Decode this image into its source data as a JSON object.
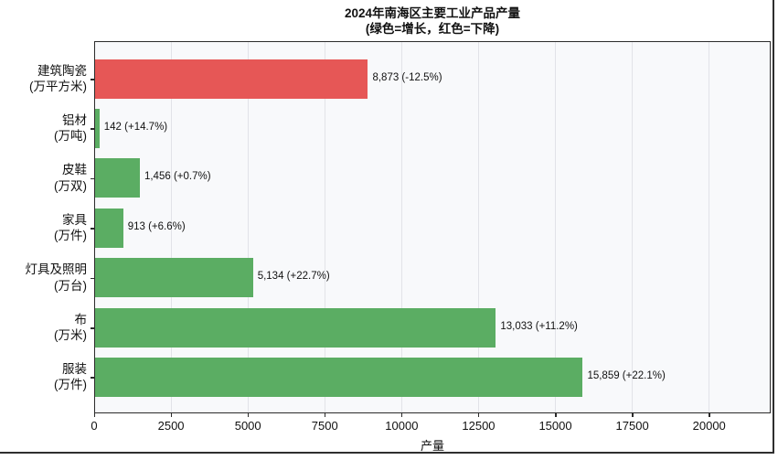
{
  "figure": {
    "title": "2024年南海区主要工业产品产量",
    "subtitle": "(绿色=增长，红色=下降)",
    "xlabel": "产量"
  },
  "colors": {
    "increase_green": "#5bad63",
    "decrease_red": "#e65756",
    "plot_background": "#f8f9fb",
    "gridline": "#e2e3e8",
    "frame": "#2b2b2b",
    "text": "#111111"
  },
  "chart_data": {
    "type": "bar",
    "orientation": "horizontal",
    "title": "2024年南海区主要工业产品产量",
    "subtitle": "(绿色=增长，红色=下降)",
    "xlabel": "产量",
    "ylabel": "",
    "xlim": [
      0,
      22000
    ],
    "x_ticks": [
      0,
      2500,
      5000,
      7500,
      10000,
      12500,
      15000,
      17500,
      20000
    ],
    "grid": "vertical-light",
    "legend_position": "none",
    "color_rule": "green = increase, red = decrease",
    "bars": [
      {
        "name": "建筑陶瓷",
        "unit": "(万平方米)",
        "value": 8873,
        "label": "8,873 (-12.5%)",
        "change_pct": -12.5,
        "color": "#e65756"
      },
      {
        "name": "铝材",
        "unit": "(万吨)",
        "value": 142,
        "label": "142 (+14.7%)",
        "change_pct": 14.7,
        "color": "#5bad63"
      },
      {
        "name": "皮鞋",
        "unit": "(万双)",
        "value": 1456,
        "label": "1,456 (+0.7%)",
        "change_pct": 0.7,
        "color": "#5bad63"
      },
      {
        "name": "家具",
        "unit": "(万件)",
        "value": 913,
        "label": "913 (+6.6%)",
        "change_pct": 6.6,
        "color": "#5bad63"
      },
      {
        "name": "灯具及照明",
        "unit": "(万台)",
        "value": 5134,
        "label": "5,134 (+22.7%)",
        "change_pct": 22.7,
        "color": "#5bad63"
      },
      {
        "name": "布",
        "unit": "(万米)",
        "value": 13033,
        "label": "13,033 (+11.2%)",
        "change_pct": 11.2,
        "color": "#5bad63"
      },
      {
        "name": "服装",
        "unit": "(万件)",
        "value": 15859,
        "label": "15,859 (+22.1%)",
        "change_pct": 22.1,
        "color": "#5bad63"
      }
    ]
  }
}
